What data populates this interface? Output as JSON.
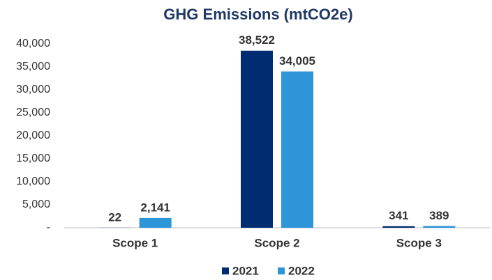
{
  "chart_data": {
    "type": "bar",
    "title": "GHG Emissions (mtCO2e)",
    "categories": [
      "Scope 1",
      "Scope 2",
      "Scope 3"
    ],
    "series": [
      {
        "name": "2021",
        "color": "#002d72",
        "values": [
          22,
          38522,
          341
        ],
        "value_labels": [
          "22",
          "38,522",
          "341"
        ]
      },
      {
        "name": "2022",
        "color": "#2e95d8",
        "values": [
          2141,
          34005,
          389
        ],
        "value_labels": [
          "2,141",
          "34,005",
          "389"
        ]
      }
    ],
    "ylim": [
      0,
      40000
    ],
    "yticks": [
      {
        "value": 0,
        "label": "-"
      },
      {
        "value": 5000,
        "label": "5,000"
      },
      {
        "value": 10000,
        "label": "10,000"
      },
      {
        "value": 15000,
        "label": "15,000"
      },
      {
        "value": 20000,
        "label": "20,000"
      },
      {
        "value": 25000,
        "label": "25,000"
      },
      {
        "value": 30000,
        "label": "30,000"
      },
      {
        "value": 35000,
        "label": "35,000"
      },
      {
        "value": 40000,
        "label": "40,000"
      }
    ],
    "grid": false,
    "legend": "bottom"
  }
}
